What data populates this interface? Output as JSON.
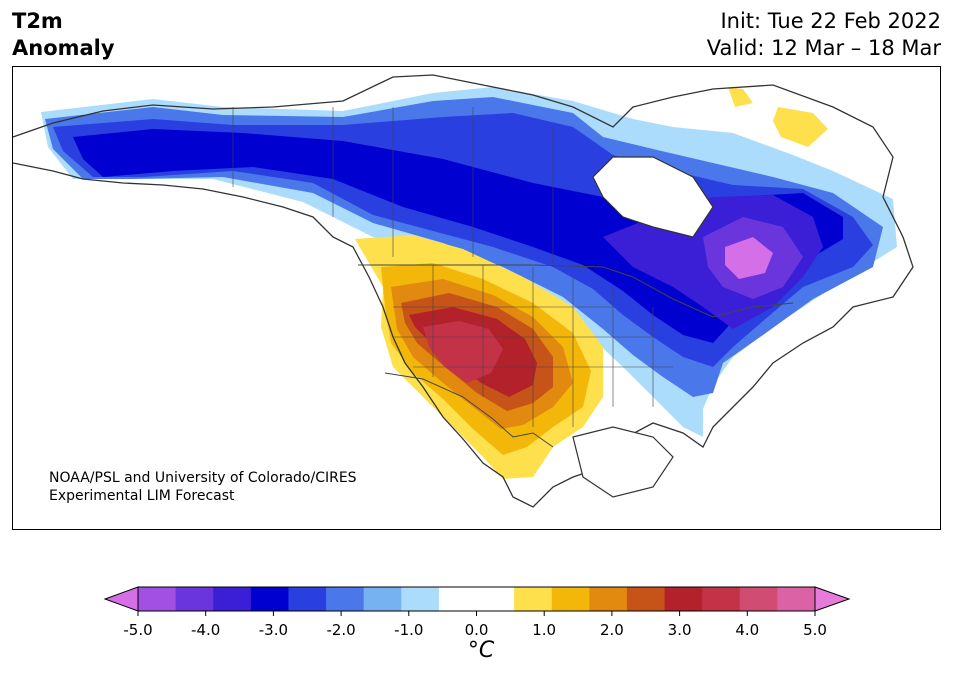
{
  "header": {
    "variable": "T2m",
    "variable_sub": "Anomaly",
    "init": "Init: Tue 22 Feb 2022",
    "valid": "Valid: 12 Mar – 18 Mar"
  },
  "credit": {
    "line1": "NOAA/PSL and University of Colorado/CIRES",
    "line2": "Experimental LIM Forecast"
  },
  "colorbar": {
    "unit": "°C",
    "tick_labels": [
      "-5.0",
      "-4.0",
      "-3.0",
      "-2.0",
      "-1.0",
      "0.0",
      "1.0",
      "2.0",
      "3.0",
      "4.0",
      "5.0"
    ],
    "bins": [
      {
        "value": -4.75,
        "color": "#d56fe8"
      },
      {
        "value": -4.25,
        "color": "#a150e3"
      },
      {
        "value": -3.75,
        "color": "#6a35dd"
      },
      {
        "value": -3.25,
        "color": "#3b1fd6"
      },
      {
        "value": -2.75,
        "color": "#0000d0"
      },
      {
        "value": -2.25,
        "color": "#2a3fe0"
      },
      {
        "value": -1.75,
        "color": "#4a78ea"
      },
      {
        "value": -1.25,
        "color": "#76b1f2"
      },
      {
        "value": -0.75,
        "color": "#acdcfb"
      },
      {
        "value": -0.25,
        "color": "#ffffff"
      },
      {
        "value": 0.25,
        "color": "#ffffff"
      },
      {
        "value": 0.75,
        "color": "#fde04c"
      },
      {
        "value": 1.25,
        "color": "#f3b70a"
      },
      {
        "value": 1.75,
        "color": "#e2890f"
      },
      {
        "value": 2.25,
        "color": "#c65317"
      },
      {
        "value": 2.75,
        "color": "#b3222a"
      },
      {
        "value": 3.25,
        "color": "#c43248"
      },
      {
        "value": 3.75,
        "color": "#d04c72"
      },
      {
        "value": 4.25,
        "color": "#db62a4"
      },
      {
        "value": 4.75,
        "color": "#e67bd9"
      }
    ]
  }
}
